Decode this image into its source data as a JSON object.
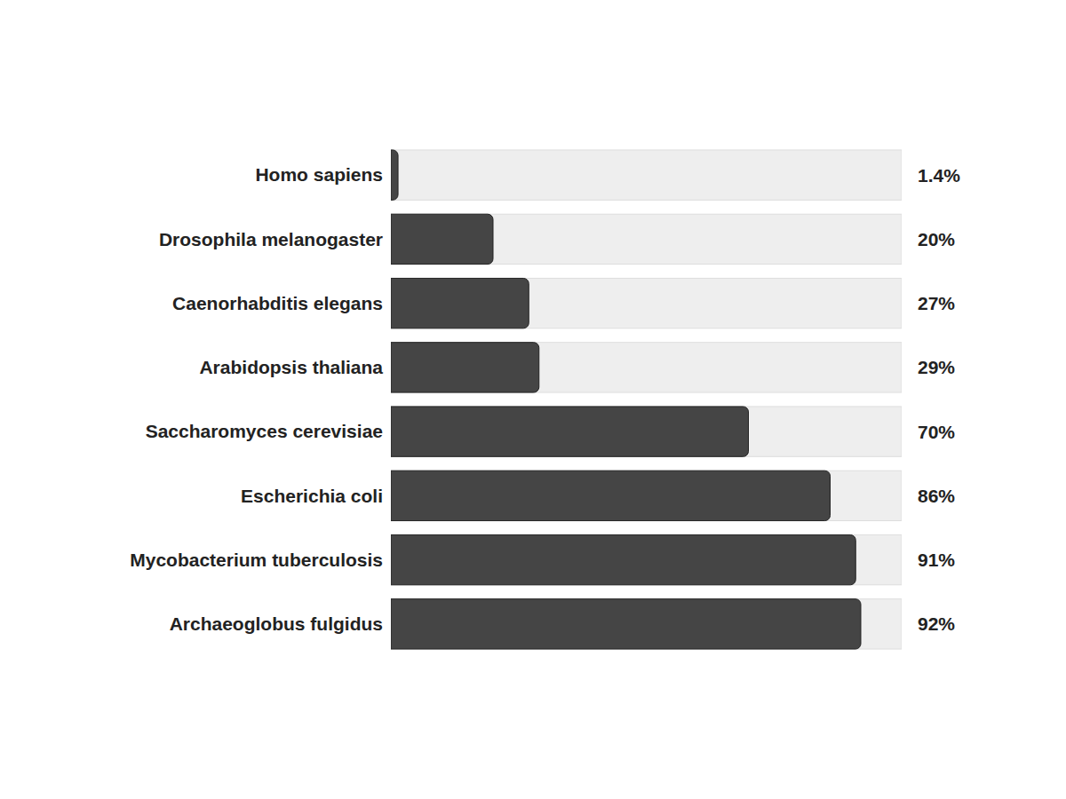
{
  "chart_data": {
    "type": "bar",
    "orientation": "horizontal",
    "categories": [
      "Homo sapiens",
      "Drosophila melanogaster",
      "Caenorhabditis elegans",
      "Arabidopsis thaliana",
      "Saccharomyces cerevisiae",
      "Escherichia coli",
      "Mycobacterium tuberculosis",
      "Archaeoglobus fulgidus"
    ],
    "values": [
      1.4,
      20,
      27,
      29,
      70,
      86,
      91,
      92
    ],
    "value_labels": [
      "1.4%",
      "20%",
      "27%",
      "29%",
      "70%",
      "86%",
      "91%",
      "92%"
    ],
    "data_labels": true,
    "color": "#454545",
    "xlim": [
      0,
      100
    ],
    "tick_labels": "y",
    "grid": false
  }
}
